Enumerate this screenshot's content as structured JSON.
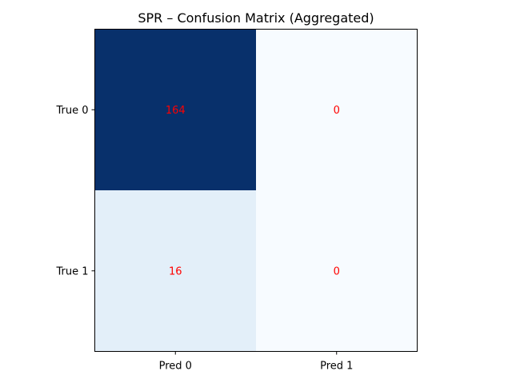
{
  "chart_data": {
    "type": "heatmap",
    "title": "SPR – Confusion Matrix (Aggregated)",
    "xlabel": "",
    "ylabel": "",
    "x_categories": [
      "Pred 0",
      "Pred 1"
    ],
    "y_categories": [
      "True 0",
      "True 1"
    ],
    "values": [
      [
        164,
        0
      ],
      [
        16,
        0
      ]
    ],
    "colormap": "Blues",
    "annotation_color": "#ff0000",
    "grid": false,
    "legend": "none"
  }
}
